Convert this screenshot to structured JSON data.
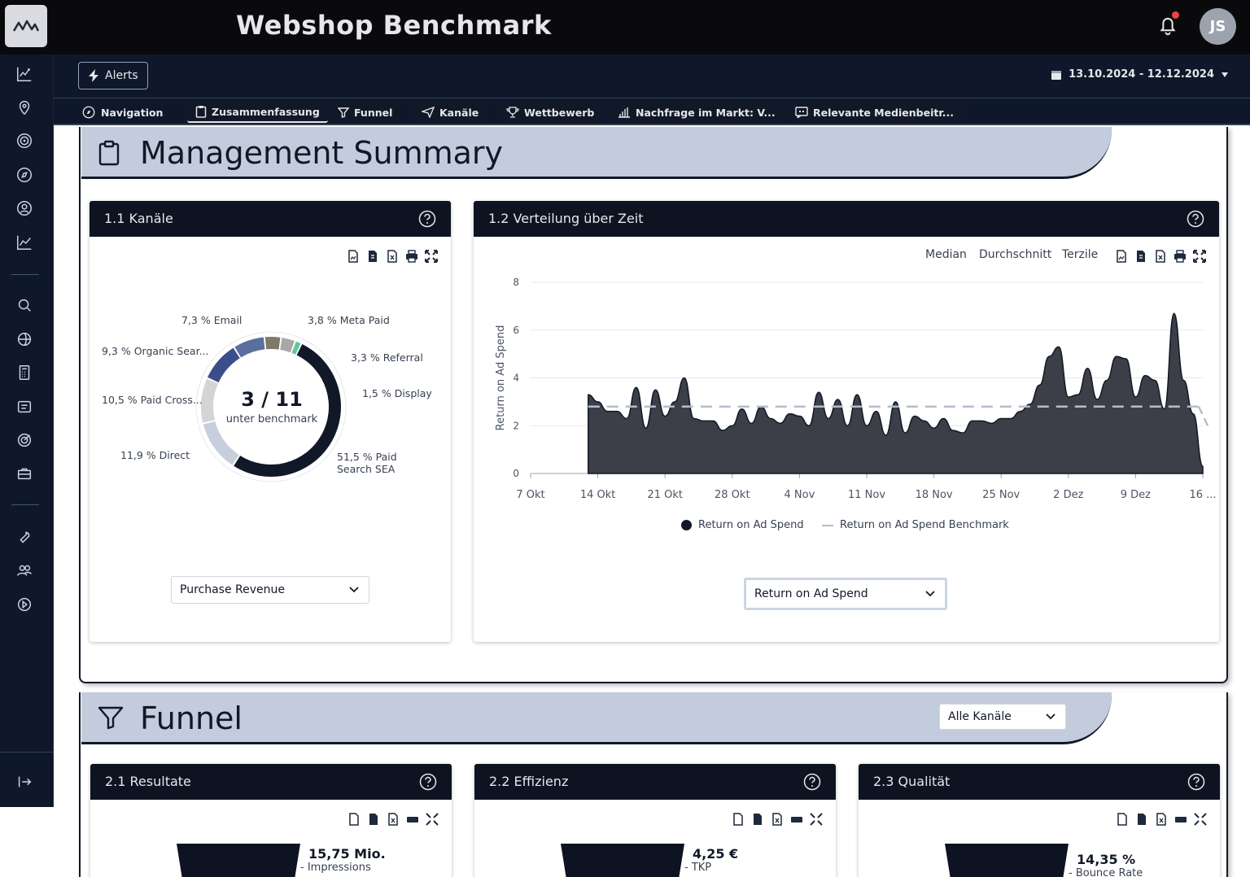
{
  "header": {
    "title": "Webshop Benchmark",
    "avatar_initials": "JS",
    "notification_dot_color": "#ef4444"
  },
  "toolbar": {
    "alerts_label": "Alerts",
    "date_range": "13.10.2024 - 12.12.2024"
  },
  "tabs": [
    {
      "label": "Navigation",
      "icon": "compass-icon"
    },
    {
      "label": "Zusammenfassung",
      "icon": "clipboard-icon",
      "active": true
    },
    {
      "label": "Funnel",
      "icon": "filter-icon"
    },
    {
      "label": "Kanäle",
      "icon": "send-icon"
    },
    {
      "label": "Wettbewerb",
      "icon": "trophy-icon"
    },
    {
      "label": "Nachfrage im Markt: V...",
      "icon": "bar-chart-icon"
    },
    {
      "label": "Relevante Medienbeitr...",
      "icon": "quote-icon"
    }
  ],
  "sidebar": {
    "icons": [
      "analytics-icon",
      "location-icon",
      "target-icon",
      "compass-icon",
      "user-search-icon",
      "trend-icon",
      "search-icon",
      "globe-icon",
      "calculator-icon",
      "list-icon",
      "goal-icon",
      "briefcase-icon",
      "wrench-icon",
      "users-icon",
      "play-icon"
    ],
    "collapse_icon": "collapse-icon"
  },
  "summary": {
    "title": "Management Summary",
    "kanaele": {
      "title": "1.1 Kanäle",
      "center_value": "3 / 11",
      "center_label": "unter benchmark",
      "select_value": "Purchase Revenue"
    },
    "verteilung": {
      "title": "1.2 Verteilung über Zeit",
      "toggles": [
        "Median",
        "Durchschnitt",
        "Terzile"
      ],
      "select_value": "Return on Ad Spend"
    }
  },
  "funnel": {
    "title": "Funnel",
    "select_value": "Alle Kanäle",
    "cards": [
      {
        "title": "2.1 Resultate",
        "value": "15,75 Mio.",
        "label": "- Impressions"
      },
      {
        "title": "2.2 Effizienz",
        "value": "4,25 €",
        "label": "- TKP"
      },
      {
        "title": "2.3 Qualität",
        "value": "14,35 %",
        "label": "- Bounce Rate"
      }
    ]
  },
  "chart_data": [
    {
      "type": "pie",
      "variant": "donut",
      "slices": [
        {
          "label": "51,5 % Paid Search SEA",
          "value": 51.5,
          "color": "#111827"
        },
        {
          "label": "11,9 % Direct",
          "value": 11.9,
          "color": "#c8cfdc"
        },
        {
          "label": "10,5 % Paid Cross...",
          "value": 10.5,
          "color": "#d4d4d4"
        },
        {
          "label": "9,3 % Organic Sear...",
          "value": 9.3,
          "color": "#3b4e8c"
        },
        {
          "label": "7,3 % Email",
          "value": 7.3,
          "color": "#5a6f9c"
        },
        {
          "label": "3,8 % Meta Paid",
          "value": 3.8,
          "color": "#807868"
        },
        {
          "label": "3,3 % Referral",
          "value": 3.3,
          "color": "#a8a8a8"
        },
        {
          "label": "1,5 % Display",
          "value": 1.5,
          "color": "#5fc7a0"
        }
      ]
    },
    {
      "type": "area",
      "ylabel": "Return on Ad Spend",
      "ylim": [
        0,
        8
      ],
      "yticks": [
        0,
        2,
        4,
        6,
        8
      ],
      "xticks": [
        "7 Okt",
        "14 Okt",
        "21 Okt",
        "28 Okt",
        "4 Nov",
        "11 Nov",
        "18 Nov",
        "25 Nov",
        "2 Dez",
        "9 Dez",
        "16 ..."
      ],
      "grid": true,
      "legend_position": "bottom",
      "series": [
        {
          "name": "Return on Ad Spend",
          "color": "#3c3f48",
          "x_start_day": 13,
          "values": [
            3.3,
            3.0,
            2.6,
            2.6,
            2.3,
            3.6,
            1.9,
            3.5,
            2.4,
            3.0,
            4.0,
            2.3,
            2.2,
            2.2,
            1.8,
            2.0,
            2.7,
            2.1,
            2.8,
            2.3,
            2.1,
            2.5,
            2.4,
            2.0,
            3.4,
            2.3,
            3.1,
            2.0,
            3.3,
            2.0,
            2.6,
            1.6,
            3.0,
            1.7,
            2.4,
            2.2,
            1.9,
            2.3,
            1.8,
            1.7,
            2.2,
            2.2,
            2.1,
            2.3,
            2.3,
            2.6,
            2.9,
            3.7,
            4.9,
            5.3,
            3.2,
            3.3,
            4.4,
            3.1,
            3.9,
            4.9,
            4.8,
            3.2,
            4.1,
            3.9,
            2.7,
            6.7,
            3.9,
            2.5,
            0.3
          ]
        },
        {
          "name": "Return on Ad Spend Benchmark",
          "color": "#b4bcd0",
          "style": "dashed",
          "value": 2.8
        }
      ]
    }
  ]
}
